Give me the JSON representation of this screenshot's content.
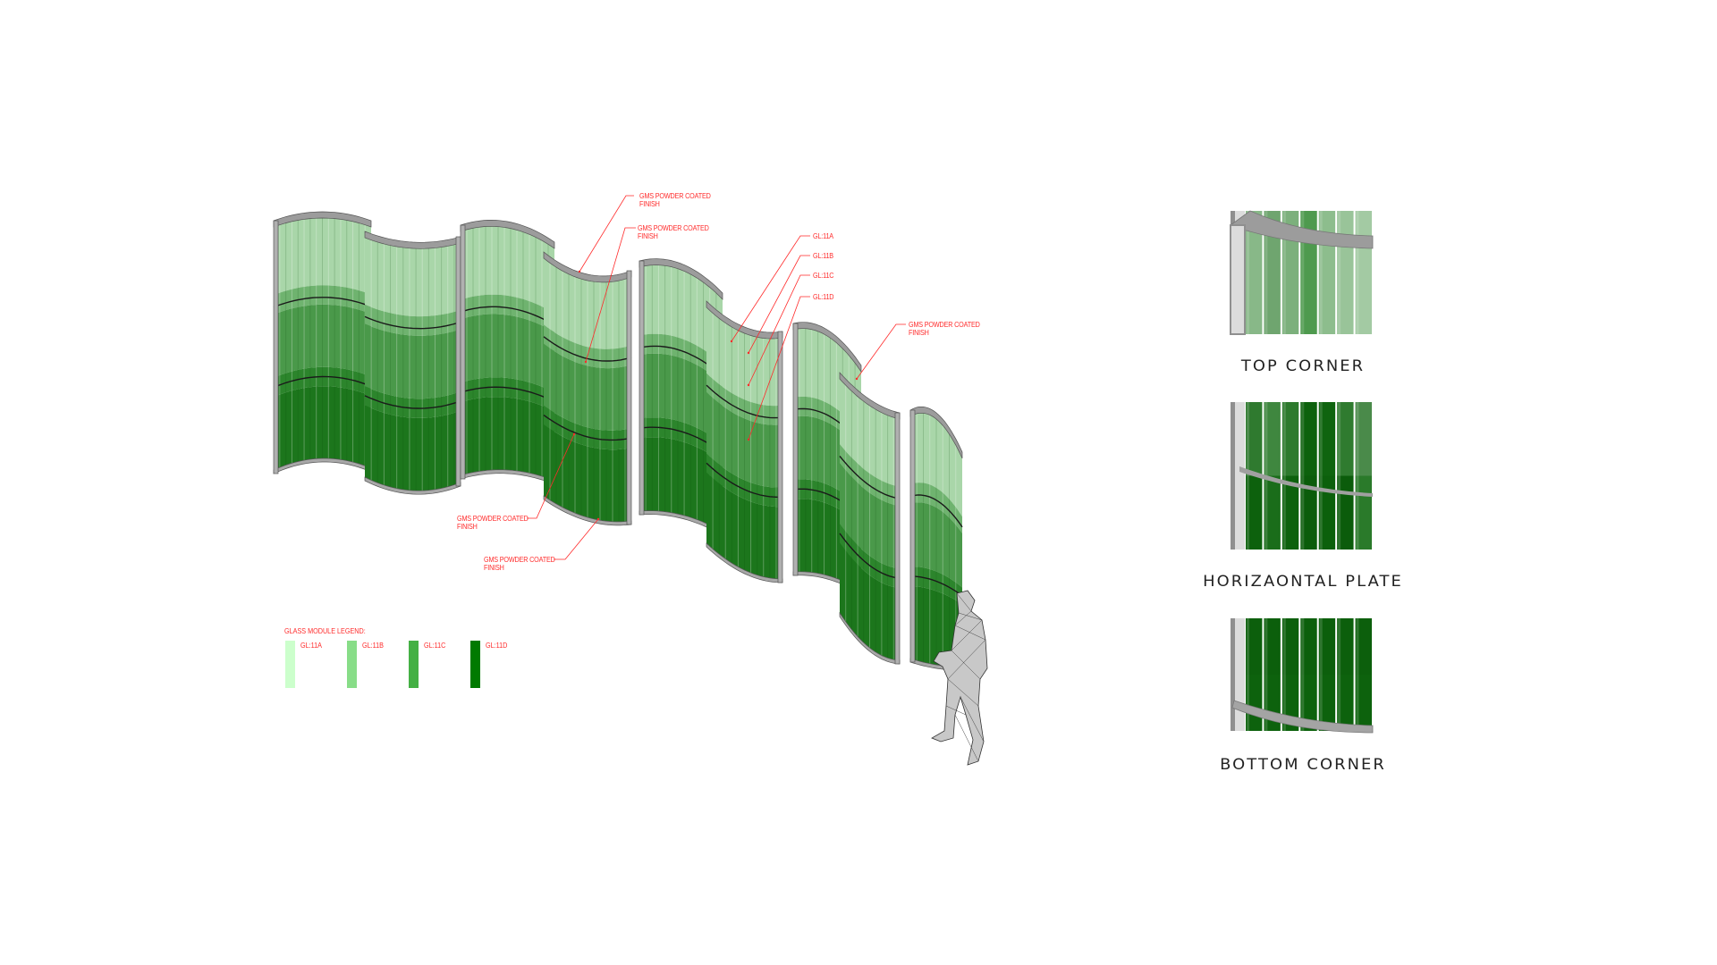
{
  "colors": {
    "annotation": "#ff2a2a",
    "frame": "#9a9a9a",
    "glass_light": "#a6d4a6",
    "glass_dark": "#0f6a0f"
  },
  "callouts": [
    {
      "line1": "GMS POWDER COATED",
      "line2": "FINISH"
    },
    {
      "line1": "GMS POWDER COATED",
      "line2": "FINISH"
    },
    {
      "line1": "GL:11A",
      "line2": ""
    },
    {
      "line1": "GL:11B",
      "line2": ""
    },
    {
      "line1": "GL:11C",
      "line2": ""
    },
    {
      "line1": "GL:11D",
      "line2": ""
    },
    {
      "line1": "GMS POWDER COATED",
      "line2": "FINISH"
    },
    {
      "line1": "GMS POWDER COATED",
      "line2": "FINISH"
    },
    {
      "line1": "GMS POWDER COATED",
      "line2": "FINISH"
    }
  ],
  "legend": {
    "title": "GLASS MODULE LEGEND:",
    "items": [
      {
        "label": "GL:11A",
        "color": "#ccffcc"
      },
      {
        "label": "GL:11B",
        "color": "#88dd88"
      },
      {
        "label": "GL:11C",
        "color": "#44b044"
      },
      {
        "label": "GL:11D",
        "color": "#007a00"
      }
    ]
  },
  "details": [
    {
      "label": "TOP CORNER",
      "icon": "top-corner-detail"
    },
    {
      "label": "HORIZAONTAL PLATE",
      "icon": "horizontal-plate-detail"
    },
    {
      "label": "BOTTOM CORNER",
      "icon": "bottom-corner-detail"
    }
  ]
}
